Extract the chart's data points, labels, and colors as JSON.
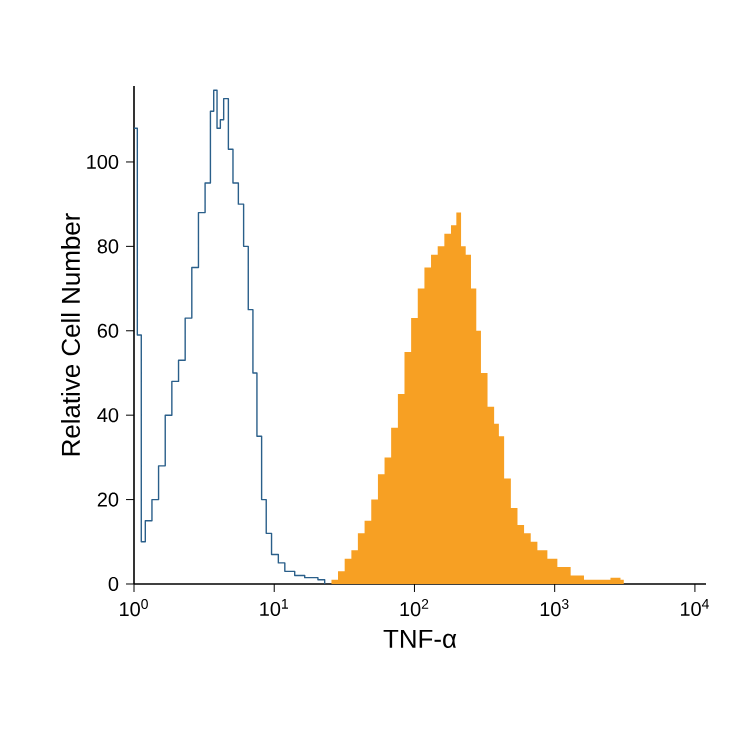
{
  "chart_data": {
    "type": "area",
    "xlabel": "TNF-α",
    "ylabel": "Relative Cell Number",
    "log": "x",
    "xlim": [
      1,
      12000
    ],
    "ylim": [
      0,
      118
    ],
    "xticks": [
      {
        "value": 1,
        "label": "10$^{0}$"
      },
      {
        "value": 10,
        "label": "10$^{1}$"
      },
      {
        "value": 100,
        "label": "10$^{2}$"
      },
      {
        "value": 1000,
        "label": "10$^{3}$"
      },
      {
        "value": 10000,
        "label": "10$^{4}$"
      }
    ],
    "yticks": [
      0,
      20,
      40,
      60,
      80,
      100
    ],
    "series": [
      {
        "color": "#f7a023",
        "x": [
          22.9,
          25.6,
          28.5,
          31.8,
          35.5,
          39.5,
          44.1,
          49.2,
          54.9,
          61.2,
          68.2,
          76.2,
          84.9,
          94.7,
          105.6,
          117.8,
          131.3,
          146.5,
          163.4,
          182.2,
          199,
          215,
          232,
          253,
          276,
          298,
          332,
          370,
          400,
          436,
          487,
          543,
          605,
          675,
          753,
          887,
          1045,
          1300,
          1618,
          2010,
          2500,
          2946,
          3110
        ],
        "values": [
          0,
          1,
          3,
          6,
          8,
          12,
          15,
          20,
          26,
          30,
          37,
          45,
          55,
          63,
          70,
          75,
          78,
          80,
          83,
          85,
          88,
          80,
          78,
          70,
          60,
          50,
          42,
          38,
          35,
          25,
          18,
          14,
          12,
          10,
          8,
          6,
          4,
          2,
          1,
          1,
          1.5,
          1,
          0
        ]
      },
      {
        "type": "step",
        "color": "#2a5f8a",
        "x": [
          1,
          1.056,
          1.127,
          1.204,
          1.343,
          1.497,
          1.67,
          1.862,
          2.078,
          2.317,
          2.584,
          2.882,
          3.214,
          3.508,
          3.703,
          3.91,
          4.128,
          4.36,
          4.71,
          5.08,
          5.55,
          6.05,
          6.53,
          7.05,
          7.53,
          8.13,
          8.77,
          9.57,
          10.7,
          11.9,
          14,
          16.5,
          20.5,
          22.9
        ],
        "values": [
          108,
          59,
          10,
          15,
          20,
          28,
          40,
          48,
          53,
          63,
          75,
          88,
          95,
          112,
          117,
          108,
          110,
          115,
          103,
          95,
          90,
          80,
          65,
          50,
          35,
          20,
          12,
          7,
          5,
          3,
          2,
          1.5,
          1,
          0
        ]
      }
    ]
  }
}
